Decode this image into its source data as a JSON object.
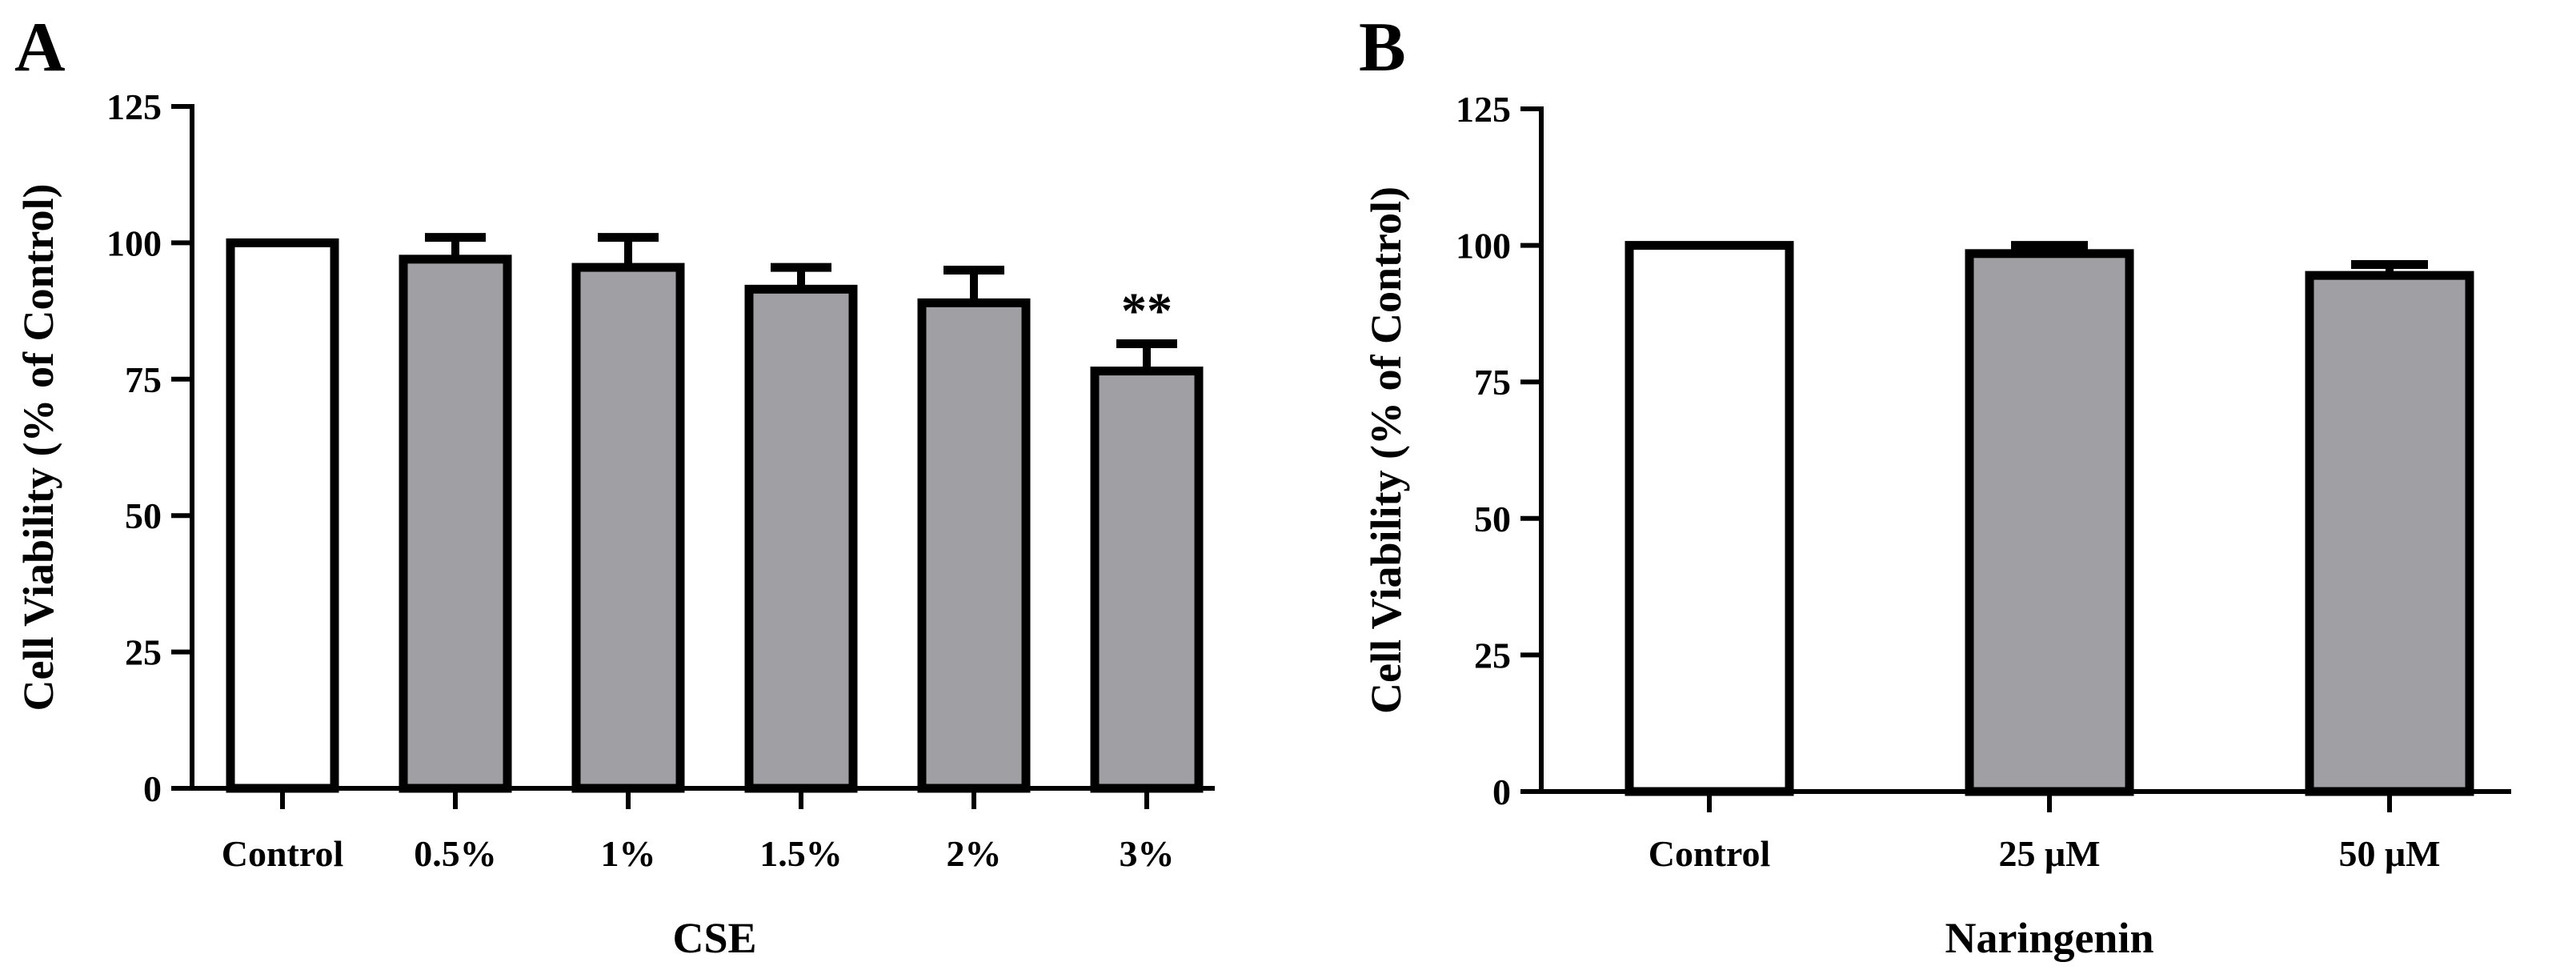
{
  "chart_data": [
    {
      "type": "bar",
      "panel": "A",
      "categories": [
        "Control",
        "0.5%",
        "1%",
        "1.5%",
        "2%",
        "3%"
      ],
      "values": [
        100,
        97,
        95.5,
        91.5,
        89,
        76.5
      ],
      "errors": [
        0,
        4,
        5.5,
        4,
        6,
        5
      ],
      "bar_colors": [
        "#ffffff",
        "#a09fa4",
        "#a09fa4",
        "#a09fa4",
        "#a09fa4",
        "#a09fa4"
      ],
      "annotations": [
        "",
        "",
        "",
        "",
        "",
        "**"
      ],
      "xlabel": "CSE",
      "ylabel": "Cell Viability (% of Control)",
      "ylim": [
        0,
        125
      ],
      "yticks": [
        0,
        25,
        50,
        75,
        100,
        125
      ],
      "ytick_labels": [
        "0",
        "25",
        "50",
        "75",
        "100",
        "125"
      ]
    },
    {
      "type": "bar",
      "panel": "B",
      "categories": [
        "Control",
        "25 μM",
        "50 μM"
      ],
      "values": [
        100,
        98.5,
        94.5
      ],
      "errors": [
        0,
        1.5,
        2
      ],
      "bar_colors": [
        "#ffffff",
        "#a09fa4",
        "#a09fa4"
      ],
      "annotations": [
        "",
        "",
        ""
      ],
      "xlabel": "Naringenin",
      "ylabel": "Cell Viability (% of Control)",
      "ylim": [
        0,
        125
      ],
      "yticks": [
        0,
        25,
        50,
        75,
        100,
        125
      ],
      "ytick_labels": [
        "0",
        "25",
        "50",
        "75",
        "100",
        "125"
      ]
    }
  ]
}
